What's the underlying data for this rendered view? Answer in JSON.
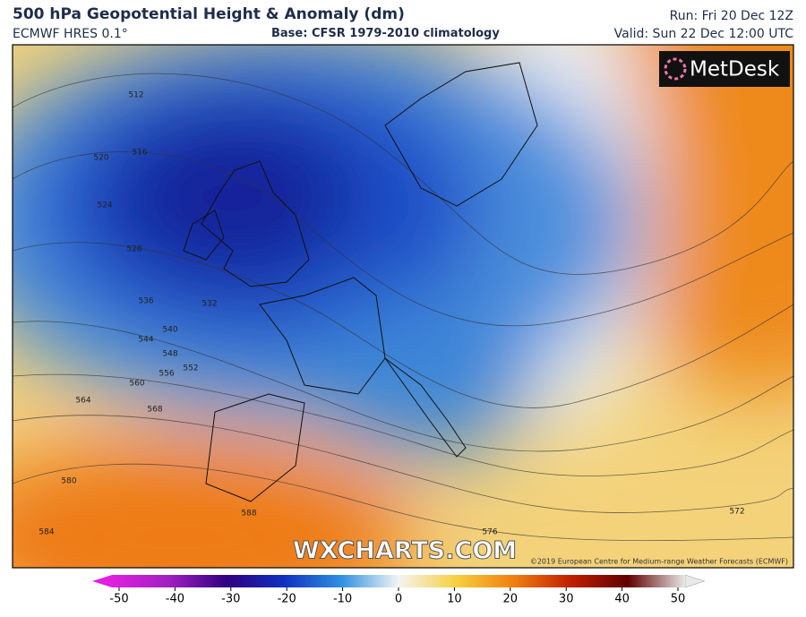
{
  "header": {
    "title": "500 hPa Geopotential Height & Anomaly (dm)",
    "model": "ECMWF HRES 0.1°",
    "base": "Base: CFSR 1979-2010 climatology",
    "run": "Run: Fri 20 Dec 12Z",
    "valid": "Valid: Sun 22 Dec 12:00 UTC"
  },
  "logo": "MetDesk",
  "watermark": "WXCHARTS.COM",
  "copyright": "©2019 European Centre for Medium-range Weather Forecasts (ECMWF)",
  "contour_labels": [
    512,
    516,
    520,
    524,
    528,
    536,
    532,
    540,
    544,
    548,
    552,
    556,
    560,
    564,
    568,
    580,
    584,
    588,
    576,
    572
  ],
  "colorbar": {
    "lim": [
      -50,
      50
    ],
    "ticks": [
      -50,
      -40,
      -30,
      -20,
      -10,
      0,
      10,
      20,
      30,
      40,
      50
    ]
  }
}
